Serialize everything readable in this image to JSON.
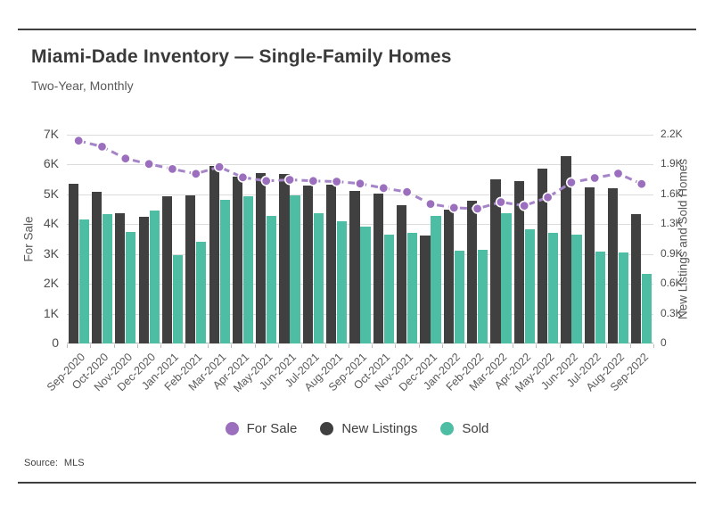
{
  "header": {
    "title": "Miami-Dade Inventory — Single-Family Homes",
    "subtitle": "Two-Year, Monthly"
  },
  "source": {
    "label": "Source:",
    "value": "MLS"
  },
  "colors": {
    "for_sale_line": "#a584c8",
    "for_sale_dot": "#9b6fbd",
    "new_listings_bar": "#404040",
    "sold_bar": "#4dbda4",
    "gridline": "#dcdcdc",
    "rule": "#3f3f3f"
  },
  "chart_data": {
    "type": "combo_bar_line",
    "title": "Miami-Dade Inventory — Single-Family Homes",
    "subtitle": "Two-Year, Monthly",
    "grid": true,
    "legend_position": "bottom",
    "categories": [
      "Sep-2020",
      "Oct-2020",
      "Nov-2020",
      "Dec-2020",
      "Jan-2021",
      "Feb-2021",
      "Mar-2021",
      "Apr-2021",
      "May-2021",
      "Jun-2021",
      "Jul-2021",
      "Aug-2021",
      "Sep-2021",
      "Oct-2021",
      "Nov-2021",
      "Dec-2021",
      "Jan-2022",
      "Feb-2022",
      "Mar-2022",
      "Apr-2022",
      "May-2022",
      "Jun-2022",
      "Jul-2022",
      "Aug-2022",
      "Sep-2022"
    ],
    "series": [
      {
        "name": "For Sale",
        "type": "line",
        "axis": "left",
        "color": "#a584c8",
        "dot_color": "#9b6fbd",
        "values": [
          6800,
          6600,
          6200,
          6020,
          5850,
          5690,
          5920,
          5570,
          5450,
          5490,
          5450,
          5430,
          5360,
          5210,
          5080,
          4680,
          4550,
          4520,
          4740,
          4620,
          4900,
          5400,
          5550,
          5700,
          5350
        ]
      },
      {
        "name": "New Listings",
        "type": "bar",
        "axis": "right",
        "color": "#404040",
        "values": [
          1680,
          1600,
          1375,
          1335,
          1555,
          1560,
          1875,
          1760,
          1800,
          1790,
          1665,
          1675,
          1610,
          1580,
          1455,
          1135,
          1410,
          1500,
          1730,
          1710,
          1840,
          1975,
          1650,
          1640,
          1365
        ]
      },
      {
        "name": "Sold",
        "type": "bar",
        "axis": "right",
        "color": "#4dbda4",
        "values": [
          1305,
          1360,
          1180,
          1400,
          935,
          1075,
          1510,
          1555,
          1345,
          1565,
          1370,
          1285,
          1230,
          1150,
          1170,
          1340,
          980,
          985,
          1375,
          1200,
          1165,
          1150,
          965,
          955,
          735
        ]
      }
    ],
    "axes": {
      "left": {
        "title": "For Sale",
        "min": 0,
        "max": 7000,
        "ticks": [
          "0",
          "1K",
          "2K",
          "3K",
          "4K",
          "5K",
          "6K",
          "7K"
        ]
      },
      "right": {
        "title": "New Listings and Sold Homes",
        "min": 0,
        "max": 2200,
        "ticks": [
          "0",
          "0.3K",
          "0.6K",
          "0.9K",
          "1.3K",
          "1.6K",
          "1.9K",
          "2.2K"
        ]
      }
    },
    "legend": [
      {
        "label": "For Sale",
        "color": "#9b6fbd"
      },
      {
        "label": "New Listings",
        "color": "#404040"
      },
      {
        "label": "Sold",
        "color": "#4dbda4"
      }
    ]
  }
}
